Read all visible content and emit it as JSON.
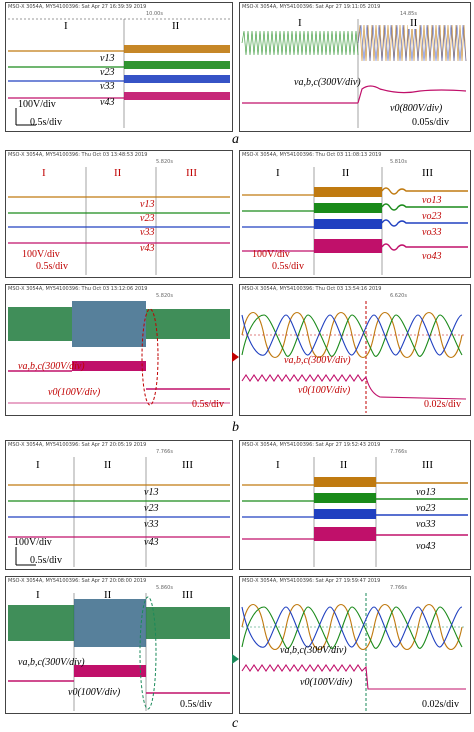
{
  "panels": {
    "a_left": {
      "header": "MSO-X 3054A, MY54100396: Sat Apr 27 16:39:39 2019",
      "timebase": "10.00s",
      "regions": [
        "I",
        "II"
      ],
      "signals": [
        "v13",
        "v23",
        "v33",
        "v43"
      ],
      "scale_v": "100V/div",
      "scale_t": "0.5s/div"
    },
    "a_right": {
      "header": "MSO-X 3054A, MY54100396: Sat Apr 27 19:11:05 2019",
      "timebase": "14.85s",
      "regions": [
        "I",
        "II"
      ],
      "signal_abc": "va,b,c(300V/div)",
      "signal_o": "v0(800V/div)",
      "scale_t": "0.05s/div"
    },
    "b_tl": {
      "header": "MSO-X 3054A, MY54100396: Thu Oct 03 13:48:53 2019",
      "timebase": "5.820s",
      "regions": [
        "I",
        "II",
        "III"
      ],
      "signals": [
        "v13",
        "v23",
        "v33",
        "v43"
      ],
      "scale_v": "100V/div",
      "scale_t": "0.5s/div"
    },
    "b_tr": {
      "header": "MSO-X 3054A, MY54100396: Thu Oct 03 11:08:13 2019",
      "timebase": "5.810s",
      "regions": [
        "I",
        "II",
        "III"
      ],
      "signals": [
        "vo13",
        "vo23",
        "vo33",
        "vo43"
      ],
      "scale_v": "100V/div",
      "scale_t": "0.5s/div"
    },
    "b_bl": {
      "header": "MSO-X 3054A, MY54100396: Thu Oct 03 13:12:06 2019",
      "timebase": "5.820s",
      "signal_abc": "va,b,c(300V/div)",
      "signal_o": "v0(100V/div)",
      "scale_t": "0.5s/div"
    },
    "b_br": {
      "header": "MSO-X 3054A, MY54100396: Thu Oct 03 13:54:16 2019",
      "timebase": "6.620s",
      "signal_abc": "va,b,c(300V/div)",
      "signal_o": "v0(100V/div)",
      "scale_t": "0.02s/div"
    },
    "c_tl": {
      "header": "MSO-X 3054A, MY54100396: Sat Apr 27 20:05:19 2019",
      "timebase": "7.766s",
      "regions": [
        "I",
        "II",
        "III"
      ],
      "signals": [
        "v13",
        "v23",
        "v33",
        "v43"
      ],
      "scale_v": "100V/div",
      "scale_t": "0.5s/div"
    },
    "c_tr": {
      "header": "MSO-X 3054A, MY54100396: Sat Apr 27 19:52:43 2019",
      "timebase": "7.766s",
      "regions": [
        "I",
        "II",
        "III"
      ],
      "signals": [
        "vo13",
        "vo23",
        "vo33",
        "vo43"
      ],
      "scale_v": "100V/div",
      "scale_t": "0.5s/div"
    },
    "c_bl": {
      "header": "MSO-X 3054A, MY54100396: Sat Apr 27 20:08:00 2019",
      "timebase": "5.860s",
      "regions": [
        "I",
        "II",
        "III"
      ],
      "signal_abc": "va,b,c(300V/div)",
      "signal_o": "v0(100V/div)",
      "scale_t": "0.5s/div"
    },
    "c_br": {
      "header": "MSO-X 3054A, MY54100396: Sat Apr 27 19:59:47 2019",
      "timebase": "7.766s",
      "signal_abc": "va,b,c(300V/div)",
      "signal_o": "v0(100V/div)",
      "scale_t": "0.02s/div"
    }
  },
  "captions": {
    "a": "a",
    "b": "b",
    "c": "c"
  },
  "colors": {
    "orange": "#c07a10",
    "green": "#1a8a1a",
    "blue": "#2040c0",
    "magenta": "#c0106a",
    "red": "#c00000"
  }
}
